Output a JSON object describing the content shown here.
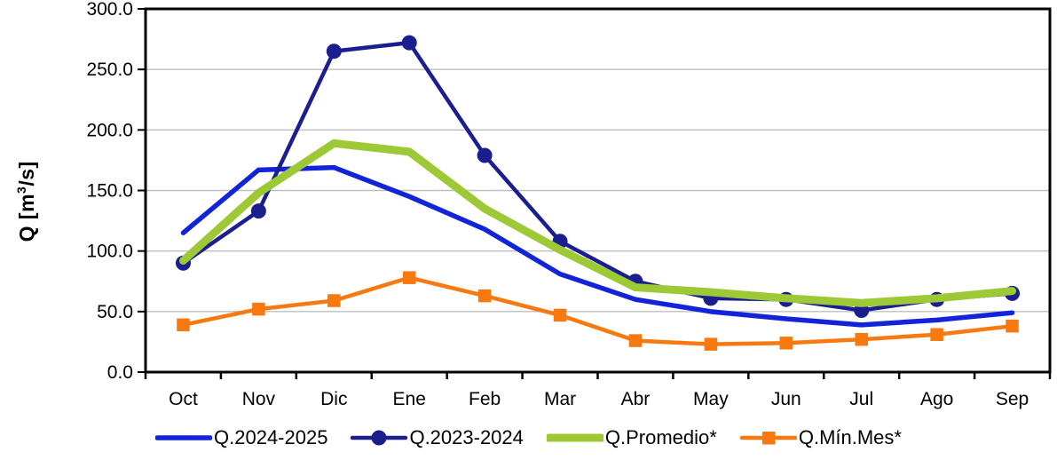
{
  "chart_data": {
    "type": "line",
    "title": "",
    "xlabel": "",
    "ylabel": "Q [m³/s]",
    "ylabel_parts": {
      "prefix": "Q [m",
      "sup": "3",
      "suffix": "/s]"
    },
    "categories": [
      "Oct",
      "Nov",
      "Dic",
      "Ene",
      "Feb",
      "Mar",
      "Abr",
      "May",
      "Jun",
      "Jul",
      "Ago",
      "Sep"
    ],
    "series": [
      {
        "name": "Q.2024-2025",
        "color": "#1124DA",
        "marker": "none",
        "line_width": 5.5,
        "values": [
          115,
          167,
          169,
          145,
          118,
          81,
          60,
          50,
          44,
          39,
          43,
          49
        ]
      },
      {
        "name": "Q.2023-2024",
        "color": "#1A1E8F",
        "marker": "circle",
        "line_width": 4.5,
        "values": [
          90,
          133,
          265,
          272,
          179,
          108,
          75,
          61,
          60,
          51,
          60,
          65
        ]
      },
      {
        "name": "Q.Promedio*",
        "color": "#9CC935",
        "marker": "none",
        "line_width": 9,
        "values": [
          92,
          148,
          189,
          182,
          135,
          101,
          70,
          66,
          61,
          57,
          61,
          67
        ]
      },
      {
        "name": "Q.Mín.Mes*",
        "color": "#F8790F",
        "marker": "square",
        "line_width": 4.5,
        "values": [
          39,
          52,
          59,
          78,
          63,
          47,
          26,
          23,
          24,
          27,
          31,
          38
        ]
      }
    ],
    "ylim": [
      0,
      300
    ],
    "ytick_step": 50,
    "ytick_labels": [
      "0.0",
      "50.0",
      "100.0",
      "150.0",
      "200.0",
      "250.0",
      "300.0"
    ],
    "grid": "horizontal",
    "legend_position": "bottom"
  },
  "colors": {
    "gridline": "#BFBFBF",
    "axis": "#000000",
    "background": "#FFFFFF",
    "text": "#000000"
  }
}
